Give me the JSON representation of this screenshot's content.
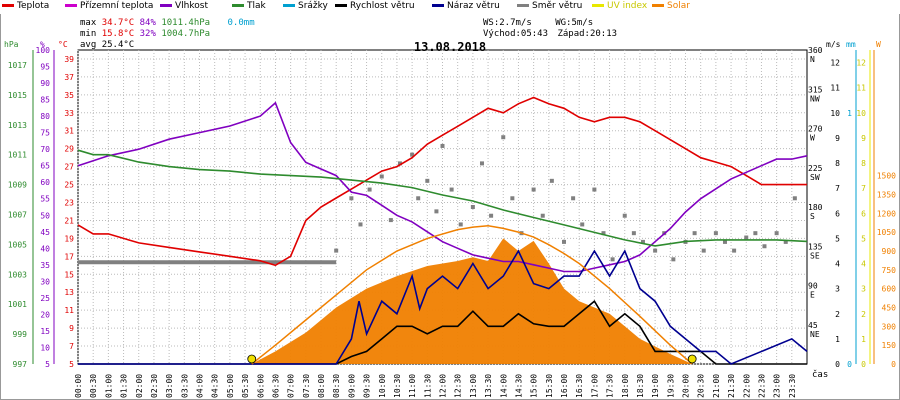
{
  "legend": [
    {
      "label": "Teplota",
      "color": "#e00000"
    },
    {
      "label": "Přízemní teplota",
      "color": "#cc00cc"
    },
    {
      "label": "Vlhkost",
      "color": "#8000c0"
    },
    {
      "label": "Tlak",
      "color": "#2e8b2e"
    },
    {
      "label": "Srážky",
      "color": "#00a0d0"
    },
    {
      "label": "Rychlost větru",
      "color": "#000000"
    },
    {
      "label": "Náraz větru",
      "color": "#000090"
    },
    {
      "label": "Směr větru",
      "color": "#808080"
    },
    {
      "label": "UV index",
      "color": "#e8e800"
    },
    {
      "label": "Solar",
      "color": "#f08000"
    }
  ],
  "stats": {
    "max_label": "max",
    "max_temp": "34.7°C",
    "max_hum": "84%",
    "max_press": "1011.4hPa",
    "rain": "0.0mm",
    "min_label": "min",
    "min_temp": "15.8°C",
    "min_hum": "32%",
    "min_press": "1004.7hPa",
    "avg_label": "avg",
    "avg_temp": "25.4°C",
    "ws": "WS:2.7m/s",
    "wg": "WG:5m/s",
    "sunrise": "Východ:05:43",
    "sunset": "Západ:20:13"
  },
  "chart_data": {
    "type": "line",
    "title": "13.08.2018",
    "xlabel": "čas",
    "x_ticks": [
      "00:00",
      "00:30",
      "01:00",
      "01:30",
      "02:00",
      "02:30",
      "03:00",
      "03:30",
      "04:00",
      "04:30",
      "05:00",
      "05:30",
      "06:00",
      "06:30",
      "07:00",
      "07:30",
      "08:00",
      "08:30",
      "09:00",
      "09:30",
      "10:00",
      "10:30",
      "11:00",
      "11:30",
      "12:00",
      "12:30",
      "13:00",
      "13:30",
      "14:00",
      "14:30",
      "15:00",
      "15:30",
      "16:00",
      "16:30",
      "17:00",
      "17:30",
      "18:00",
      "18:30",
      "19:00",
      "19:30",
      "20:00",
      "20:30",
      "21:00",
      "21:30",
      "22:00",
      "22:30",
      "23:00",
      "23:30"
    ],
    "x_range_hours": [
      0,
      24
    ],
    "axes": {
      "pressure": {
        "unit": "hPa",
        "range": [
          997,
          1018
        ],
        "ticks": [
          997,
          999,
          1001,
          1003,
          1005,
          1007,
          1009,
          1011,
          1013,
          1015,
          1017
        ],
        "color": "#2e8b2e"
      },
      "humidity": {
        "unit": "%",
        "range": [
          5,
          100
        ],
        "ticks": [
          5,
          10,
          15,
          20,
          25,
          30,
          35,
          40,
          45,
          50,
          55,
          60,
          65,
          70,
          75,
          80,
          85,
          90,
          95,
          100
        ],
        "color": "#8000c0"
      },
      "temperature": {
        "unit": "°C",
        "range": [
          5,
          40
        ],
        "ticks": [
          5,
          7,
          9,
          11,
          13,
          15,
          17,
          19,
          21,
          23,
          25,
          27,
          29,
          31,
          33,
          35,
          37,
          39
        ],
        "color": "#e00000"
      },
      "wind_direction": {
        "range": [
          0,
          360
        ],
        "ticks": [
          {
            "v": 45,
            "l": "45",
            "d": "NE"
          },
          {
            "v": 90,
            "l": "90",
            "d": "E"
          },
          {
            "v": 135,
            "l": "135",
            "d": "SE"
          },
          {
            "v": 180,
            "l": "180",
            "d": "S"
          },
          {
            "v": 225,
            "l": "225",
            "d": "SW"
          },
          {
            "v": 270,
            "l": "270",
            "d": "W"
          },
          {
            "v": 315,
            "l": "315",
            "d": "NW"
          },
          {
            "v": 360,
            "l": "360",
            "d": "N"
          }
        ]
      },
      "wind_speed": {
        "unit": "m/s",
        "range": [
          0,
          12.5
        ],
        "ticks": [
          0,
          1,
          2,
          3,
          4,
          5,
          6,
          7,
          8,
          9,
          10,
          11,
          12
        ]
      },
      "rain": {
        "unit": "mm",
        "range": [
          0,
          1.25
        ],
        "ticks": [
          0,
          1
        ]
      },
      "uv": {
        "range": [
          0,
          12.5
        ],
        "ticks": [
          0,
          1,
          2,
          3,
          4,
          5,
          6,
          7,
          8,
          9,
          10,
          11,
          12
        ]
      },
      "solar": {
        "unit": "W",
        "range": [
          0,
          2500
        ],
        "ticks": [
          0,
          150,
          300,
          450,
          600,
          750,
          900,
          1050,
          1200,
          1350,
          1500
        ]
      }
    },
    "series": [
      {
        "name": "Teplota",
        "axis": "temperature",
        "color": "#e00000",
        "x": [
          0,
          0.5,
          1,
          2,
          3,
          4,
          5,
          6,
          6.5,
          7,
          7.5,
          8,
          8.5,
          9,
          9.5,
          10,
          10.5,
          11,
          11.5,
          12,
          12.5,
          13,
          13.5,
          14,
          14.5,
          15,
          15.5,
          16,
          16.5,
          17,
          17.5,
          18,
          18.5,
          19,
          19.5,
          20,
          20.5,
          21,
          21.5,
          22,
          22.5,
          23,
          23.5,
          24
        ],
        "y": [
          20.5,
          19.5,
          19.5,
          18.5,
          18.0,
          17.5,
          17.0,
          16.5,
          16.0,
          17.0,
          21.0,
          22.5,
          23.5,
          24.5,
          25.5,
          26.5,
          27.0,
          28.0,
          29.5,
          30.5,
          31.5,
          32.5,
          33.5,
          33.0,
          34.0,
          34.7,
          34.0,
          33.5,
          32.5,
          32.0,
          32.5,
          32.5,
          32.0,
          31.0,
          30.0,
          29.0,
          28.0,
          27.5,
          27.0,
          26.0,
          25.0,
          25.0,
          25.0,
          25.0
        ]
      },
      {
        "name": "Vlhkost",
        "axis": "humidity",
        "color": "#8000c0",
        "x": [
          0,
          1,
          2,
          3,
          4,
          5,
          6,
          6.5,
          7,
          7.5,
          8,
          8.5,
          9,
          9.5,
          10,
          10.5,
          11,
          11.5,
          12,
          12.5,
          13,
          13.5,
          14,
          14.5,
          15,
          15.5,
          16,
          16.5,
          17,
          17.5,
          18,
          18.5,
          19,
          19.5,
          20,
          20.5,
          21,
          21.5,
          22,
          22.5,
          23,
          23.5,
          24
        ],
        "y": [
          65,
          68,
          70,
          73,
          75,
          77,
          80,
          84,
          72,
          66,
          64,
          62,
          57,
          56,
          53,
          50,
          48,
          45,
          42,
          40,
          38,
          37,
          36,
          36,
          35,
          34,
          33,
          33,
          34,
          35,
          36,
          38,
          42,
          46,
          51,
          55,
          58,
          61,
          63,
          65,
          67,
          67,
          68
        ]
      },
      {
        "name": "Tlak",
        "axis": "pressure",
        "color": "#2e8b2e",
        "x": [
          0,
          0.5,
          1,
          2,
          3,
          4,
          5,
          6,
          7,
          8,
          9,
          10,
          11,
          12,
          13,
          14,
          15,
          16,
          17,
          18,
          19,
          20,
          21,
          22,
          23,
          24
        ],
        "y": [
          1011.3,
          1011.0,
          1011.0,
          1010.5,
          1010.2,
          1010.0,
          1009.9,
          1009.7,
          1009.6,
          1009.5,
          1009.3,
          1009.1,
          1008.8,
          1008.3,
          1007.9,
          1007.3,
          1006.8,
          1006.3,
          1005.8,
          1005.3,
          1004.9,
          1005.2,
          1005.3,
          1005.3,
          1005.3,
          1005.2
        ]
      },
      {
        "name": "Rychlost větru",
        "axis": "wind_speed",
        "color": "#000000",
        "x": [
          0,
          8.5,
          9,
          9.5,
          10,
          10.5,
          11,
          11.5,
          12,
          12.5,
          13,
          13.5,
          14,
          14.5,
          15,
          15.5,
          16,
          16.5,
          17,
          17.5,
          18,
          18.5,
          19,
          19.5,
          20,
          20.5,
          21,
          21.5,
          24
        ],
        "y": [
          0,
          0,
          0.3,
          0.5,
          1,
          1.5,
          1.5,
          1.2,
          1.5,
          1.5,
          2.1,
          1.5,
          1.5,
          2.0,
          1.6,
          1.5,
          1.5,
          2.0,
          2.5,
          1.5,
          2.0,
          1.5,
          0.5,
          0.5,
          0.5,
          0.5,
          0,
          0,
          0
        ]
      },
      {
        "name": "Náraz větru",
        "axis": "wind_speed",
        "color": "#000090",
        "x": [
          0,
          8.5,
          9,
          9.25,
          9.5,
          10,
          10.5,
          11,
          11.25,
          11.5,
          12,
          12.5,
          13,
          13.5,
          14,
          14.5,
          15,
          15.5,
          16,
          16.5,
          17,
          17.5,
          18,
          18.5,
          19,
          19.5,
          20,
          20.5,
          21,
          21.5,
          23.5,
          24
        ],
        "y": [
          0,
          0,
          1,
          2.5,
          1.2,
          2.5,
          2.0,
          3.5,
          2.2,
          3.0,
          3.5,
          3.0,
          4.0,
          3.0,
          3.5,
          4.5,
          3.2,
          3.0,
          3.5,
          3.5,
          4.5,
          3.5,
          4.5,
          3.0,
          2.5,
          1.5,
          1.0,
          0.5,
          0.5,
          0,
          1.0,
          0.5
        ]
      },
      {
        "name": "Solar",
        "axis": "solar",
        "color": "#f08000",
        "x": [
          5.72,
          6.5,
          7.5,
          8.5,
          9.5,
          10.5,
          11.5,
          12.5,
          13.0,
          13.5,
          14.0,
          14.5,
          15.0,
          15.5,
          16.0,
          16.5,
          17.5,
          18.5,
          19.5,
          20.22
        ],
        "y": [
          0,
          150,
          350,
          550,
          750,
          900,
          1000,
          1070,
          1090,
          1100,
          1080,
          1050,
          1010,
          950,
          880,
          800,
          600,
          380,
          150,
          0
        ]
      },
      {
        "name": "Solar",
        "axis": "solar",
        "color": "#f08000",
        "style": "area",
        "x": [
          5.72,
          6.5,
          7.5,
          8.5,
          9.5,
          10.5,
          11.5,
          12.5,
          13.0,
          13.5,
          14.0,
          14.5,
          15.0,
          15.5,
          16.0,
          16.5,
          17.0,
          17.5,
          18.0,
          18.5,
          19.5,
          20.22
        ],
        "y": [
          0,
          100,
          250,
          450,
          600,
          700,
          780,
          820,
          850,
          820,
          1000,
          900,
          980,
          800,
          600,
          500,
          450,
          400,
          300,
          200,
          80,
          0
        ]
      }
    ],
    "wind_direction_points": {
      "axis": "wind_direction",
      "color": "#808080",
      "x": [
        8.5,
        9.0,
        9.3,
        9.6,
        10.0,
        10.3,
        10.6,
        11.0,
        11.2,
        11.5,
        11.8,
        12.0,
        12.3,
        12.6,
        13.0,
        13.3,
        13.6,
        14.0,
        14.3,
        14.6,
        15.0,
        15.3,
        15.6,
        16.0,
        16.3,
        16.6,
        17.0,
        17.3,
        17.6,
        18.0,
        18.3,
        18.6,
        19.0,
        19.3,
        19.6,
        20.0,
        20.3,
        20.6,
        21.0,
        21.3,
        21.6,
        22.0,
        22.3,
        22.6,
        23.0,
        23.3,
        23.6
      ],
      "y": [
        130,
        190,
        160,
        200,
        215,
        165,
        230,
        240,
        190,
        210,
        175,
        250,
        200,
        160,
        180,
        230,
        170,
        260,
        190,
        150,
        200,
        170,
        210,
        140,
        190,
        160,
        200,
        150,
        120,
        170,
        150,
        140,
        130,
        150,
        120,
        140,
        150,
        130,
        150,
        140,
        130,
        145,
        150,
        135,
        150,
        140,
        190
      ]
    },
    "markers": [
      {
        "label": "sunrise",
        "x": 5.72,
        "color": "#f0e000"
      },
      {
        "label": "sunset",
        "x": 20.22,
        "color": "#f0e000"
      }
    ]
  }
}
